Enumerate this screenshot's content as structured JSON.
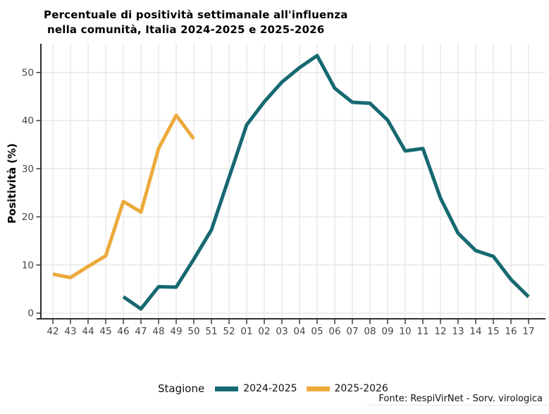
{
  "title": {
    "line1": "Percentuale di positività settimanale all'influenza",
    "line2": "nella comunità, Italia 2024-2025 e 2025-2026"
  },
  "y_axis": {
    "label": "Positività (%)",
    "ticks": [
      0,
      10,
      20,
      30,
      40,
      50
    ]
  },
  "legend": {
    "title": "Stagione",
    "items": [
      {
        "label": "2024-2025",
        "color": "#166970"
      },
      {
        "label": "2025-2026",
        "color": "#ecaa3c"
      }
    ]
  },
  "footer": {
    "source": "Fonte: RespiVirNet - Sorv. virologica"
  },
  "chart_data": {
    "type": "line",
    "title": "Percentuale di positività settimanale all'influenza nella comunità, Italia 2024-2025 e 2025-2026",
    "xlabel": "",
    "ylabel": "Positività (%)",
    "ylim": [
      0,
      55
    ],
    "grid": true,
    "legend_position": "bottom",
    "categories": [
      "42",
      "43",
      "44",
      "45",
      "46",
      "47",
      "48",
      "49",
      "50",
      "51",
      "52",
      "01",
      "02",
      "03",
      "04",
      "05",
      "06",
      "07",
      "08",
      "09",
      "10",
      "11",
      "12",
      "13",
      "14",
      "15",
      "16",
      "17"
    ],
    "series": [
      {
        "name": "2024-2025",
        "color": "#166970",
        "start_index": 4,
        "values": [
          3.4,
          0.9,
          5.5,
          5.4,
          11.2,
          17.3,
          28.2,
          39.1,
          43.9,
          48.0,
          51.0,
          53.5,
          46.7,
          43.8,
          43.6,
          40.1,
          33.7,
          34.2,
          23.9,
          16.6,
          13.0,
          11.8,
          7.0,
          3.4
        ]
      },
      {
        "name": "2025-2026",
        "color": "#ecaa3c",
        "start_index": 0,
        "values": [
          8.1,
          7.4,
          9.7,
          11.9,
          23.2,
          21.0,
          34.2,
          41.1,
          36.2
        ]
      }
    ]
  }
}
